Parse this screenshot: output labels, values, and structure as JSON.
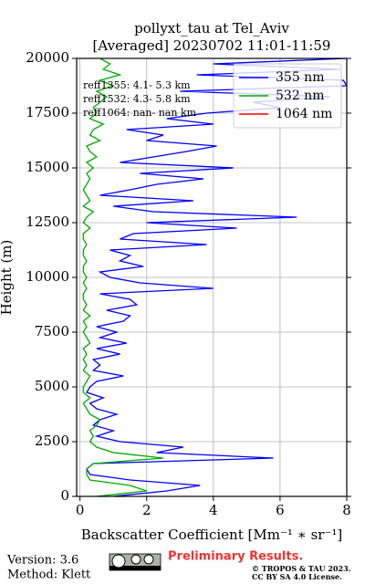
{
  "chart_data": {
    "type": "line",
    "title": "pollyxt_tau at Tel_Aviv",
    "subtitle": "[Averaged] 20230702 11:01-11:59",
    "x_label": "Backscatter Coefficient [Mm⁻¹ ∗ sr⁻¹]",
    "y_label": "Height (m)",
    "annotations": [
      "reff1355:  4.1- 5.3 km",
      "reff1532:  4.3- 5.8 km",
      "reff1064:  nan- nan km"
    ],
    "heights": [
      0,
      250,
      500,
      750,
      1000,
      1250,
      1500,
      1750,
      2000,
      2250,
      2500,
      2750,
      3000,
      3250,
      3500,
      3750,
      4000,
      4250,
      4500,
      4750,
      5000,
      5250,
      5500,
      5750,
      6000,
      6250,
      6500,
      6750,
      7000,
      7250,
      7500,
      7750,
      8000,
      8250,
      8500,
      8750,
      9000,
      9250,
      9500,
      9750,
      10000,
      10250,
      10500,
      10750,
      11000,
      11250,
      11500,
      11750,
      12000,
      12250,
      12500,
      12750,
      13000,
      13250,
      13500,
      13750,
      14000,
      14250,
      14500,
      14750,
      15000,
      15250,
      15500,
      15750,
      16000,
      16250,
      16500,
      16750,
      17000,
      17250,
      17500,
      17750,
      18000,
      18250,
      18500,
      18750,
      19000,
      19250,
      19500,
      19750,
      20000
    ],
    "series": [
      {
        "name": "355 nm",
        "color": "#0000ff",
        "values": [
          1.0,
          2.6,
          3.6,
          1.5,
          0.3,
          0.2,
          0.4,
          5.8,
          2.3,
          3.1,
          1.2,
          0.5,
          1.0,
          0.4,
          0.6,
          1.1,
          0.5,
          0.3,
          0.7,
          0.2,
          0.3,
          0.5,
          1.3,
          0.4,
          0.6,
          0.4,
          1.2,
          0.5,
          1.4,
          0.6,
          1.1,
          0.5,
          1.3,
          1.5,
          0.8,
          1.7,
          1.5,
          0.6,
          4.0,
          1.8,
          0.9,
          0.6,
          1.9,
          1.2,
          1.5,
          0.9,
          3.8,
          1.2,
          1.6,
          4.7,
          2.0,
          6.5,
          2.2,
          1.0,
          3.4,
          0.6,
          1.5,
          2.3,
          3.7,
          1.8,
          4.6,
          1.2,
          2.2,
          3.2,
          4.1,
          2.0,
          2.5,
          1.4,
          4.0,
          2.6,
          3.8,
          6.0,
          5.2,
          7.5,
          3.0,
          8.0,
          7.9,
          3.5,
          7.8,
          4.0,
          8.0
        ]
      },
      {
        "name": "532 nm",
        "color": "#00aa00",
        "values": [
          0.5,
          2.0,
          1.5,
          0.3,
          0.2,
          0.2,
          0.4,
          2.5,
          1.0,
          0.5,
          0.3,
          0.4,
          0.3,
          0.5,
          0.6,
          0.3,
          0.2,
          0.1,
          0.3,
          0.1,
          0.1,
          0.2,
          0.3,
          0.1,
          0.2,
          0.1,
          0.2,
          0.1,
          0.3,
          0.2,
          0.1,
          0.2,
          0.1,
          0.3,
          0.1,
          0.2,
          0.1,
          0.1,
          0.2,
          0.1,
          0.2,
          0.1,
          0.1,
          0.2,
          0.1,
          0.1,
          0.2,
          0.1,
          0.1,
          0.3,
          0.1,
          0.2,
          0.4,
          0.1,
          0.3,
          0.2,
          0.1,
          0.2,
          0.3,
          0.2,
          0.4,
          0.2,
          0.5,
          0.3,
          0.2,
          0.6,
          0.3,
          0.4,
          0.7,
          0.3,
          0.5,
          0.4,
          0.6,
          0.8,
          0.5,
          1.0,
          0.6,
          1.2,
          0.7,
          0.9,
          0.6
        ]
      },
      {
        "name": "1064 nm",
        "color": "#ff0000",
        "values": [
          null,
          null,
          null,
          null,
          null,
          null,
          null,
          null,
          null,
          null,
          null,
          null,
          null,
          null,
          null,
          null,
          null,
          null,
          null,
          null,
          null,
          null,
          null,
          null,
          null,
          null,
          null,
          null,
          null,
          null,
          null,
          null,
          null,
          null,
          null,
          null,
          null,
          null,
          null,
          null,
          null,
          null,
          null,
          null,
          null,
          null,
          null,
          null,
          null,
          null,
          null,
          null,
          null,
          null,
          null,
          null,
          null,
          null,
          null,
          null,
          null,
          null,
          null,
          null,
          null,
          null,
          null,
          null,
          null,
          null,
          null,
          null,
          null,
          null,
          null,
          null,
          null,
          null,
          null,
          null,
          null
        ]
      }
    ],
    "xlim": [
      -0.1,
      8
    ],
    "ylim": [
      0,
      20000
    ],
    "xticks": [
      0,
      2,
      4,
      6,
      8
    ],
    "yticks": [
      0,
      2500,
      5000,
      7500,
      10000,
      12500,
      15000,
      17500,
      20000
    ],
    "grid": true,
    "legend": "upper right"
  },
  "footer": {
    "version": "Version: 3.6",
    "method": "Method: Klett",
    "preliminary": "Preliminary Results.",
    "copyright": "© TROPOS & TAU 2023.",
    "license": "CC BY SA 4.0 License."
  }
}
